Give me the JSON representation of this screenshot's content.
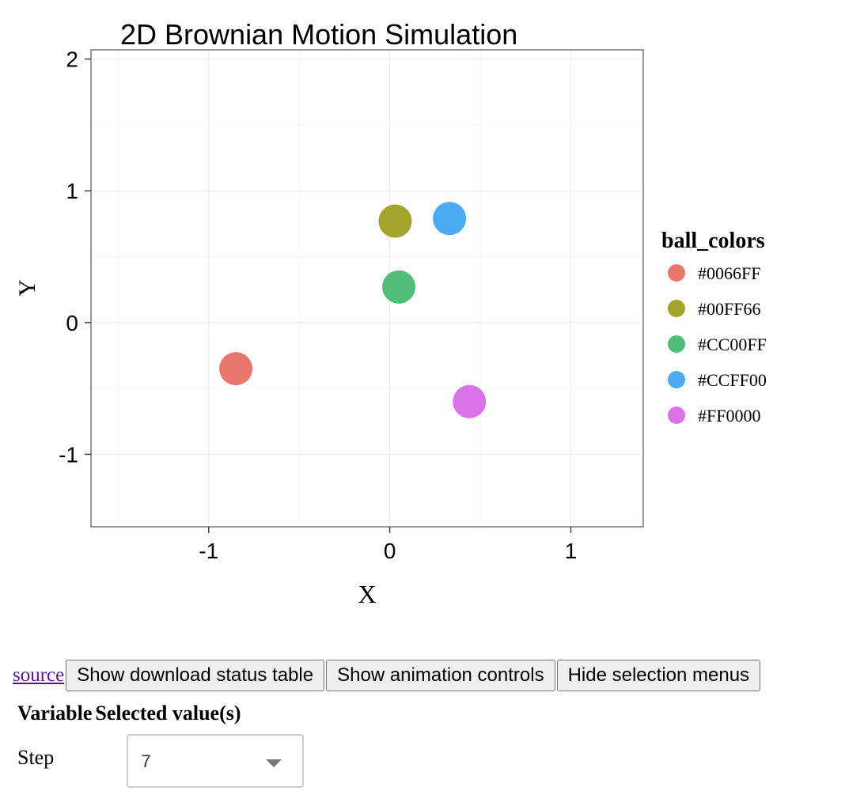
{
  "chart_data": {
    "type": "scatter",
    "title": "2D Brownian Motion Simulation",
    "xlabel": "X",
    "ylabel": "Y",
    "xlim": [
      -1.65,
      1.4
    ],
    "ylim": [
      -1.55,
      2.07
    ],
    "xticks": [
      -1,
      0,
      1
    ],
    "xtick_labels": [
      "-1",
      "0",
      "1"
    ],
    "yticks": [
      -1,
      0,
      1,
      2
    ],
    "ytick_labels": [
      "-1",
      "0",
      "1",
      "2"
    ],
    "grid": true,
    "legend": {
      "title": "ball_colors",
      "placement": "right",
      "entries": [
        {
          "label": "#0066FF",
          "color": "#E8776E"
        },
        {
          "label": "#00FF66",
          "color": "#A3A42C"
        },
        {
          "label": "#CC00FF",
          "color": "#52BC79"
        },
        {
          "label": "#CCFF00",
          "color": "#4BAAF2"
        },
        {
          "label": "#FF0000",
          "color": "#D874E8"
        }
      ]
    },
    "series": [
      {
        "name": "#0066FF",
        "x": -0.85,
        "y": -0.35,
        "color": "#E8776E"
      },
      {
        "name": "#00FF66",
        "x": 0.03,
        "y": 0.77,
        "color": "#A3A42C"
      },
      {
        "name": "#CC00FF",
        "x": 0.05,
        "y": 0.27,
        "color": "#52BC79"
      },
      {
        "name": "#CCFF00",
        "x": 0.33,
        "y": 0.79,
        "color": "#4BAAF2"
      },
      {
        "name": "#FF0000",
        "x": 0.44,
        "y": -0.6,
        "color": "#D874E8"
      }
    ]
  },
  "controls": {
    "source_link": "source",
    "download_button": "Show download status table",
    "animation_button": "Show animation controls",
    "selection_button": "Hide selection menus"
  },
  "selection_table": {
    "col_variable": "Variable",
    "col_values": "Selected value(s)",
    "rows": [
      {
        "variable": "Step",
        "value": "7"
      }
    ]
  }
}
